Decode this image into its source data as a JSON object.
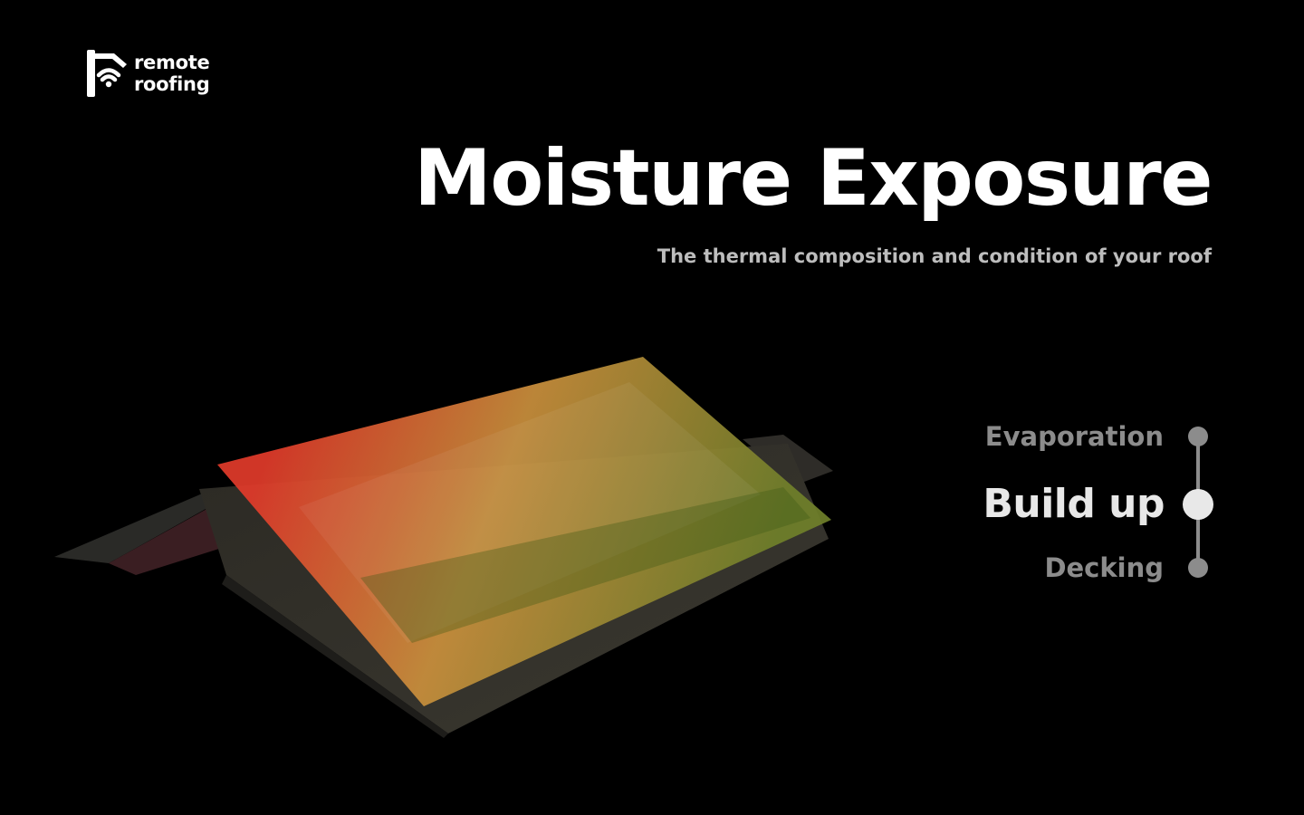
{
  "brand": {
    "line1": "remote",
    "line2": "roofing",
    "icon": "house-wifi-logo-icon"
  },
  "header": {
    "title": "Moisture Exposure",
    "subtitle": "The thermal composition and condition of your roof"
  },
  "illustration": {
    "icon": "roof-moisture-heatmap-illustration",
    "heatmap_colors": [
      "#e03a2a",
      "#c98f3c",
      "#6f7f2a"
    ]
  },
  "layers": {
    "selected": "Build up",
    "items": [
      {
        "label": "Evaporation",
        "state": "inactive"
      },
      {
        "label": "Build up",
        "state": "active"
      },
      {
        "label": "Decking",
        "state": "inactive"
      }
    ]
  },
  "colors": {
    "background": "#000000",
    "title": "#ffffff",
    "subtitle": "#bdbdbd",
    "active_step": "#e8e8e8",
    "inactive_step": "#8c8c8c"
  }
}
